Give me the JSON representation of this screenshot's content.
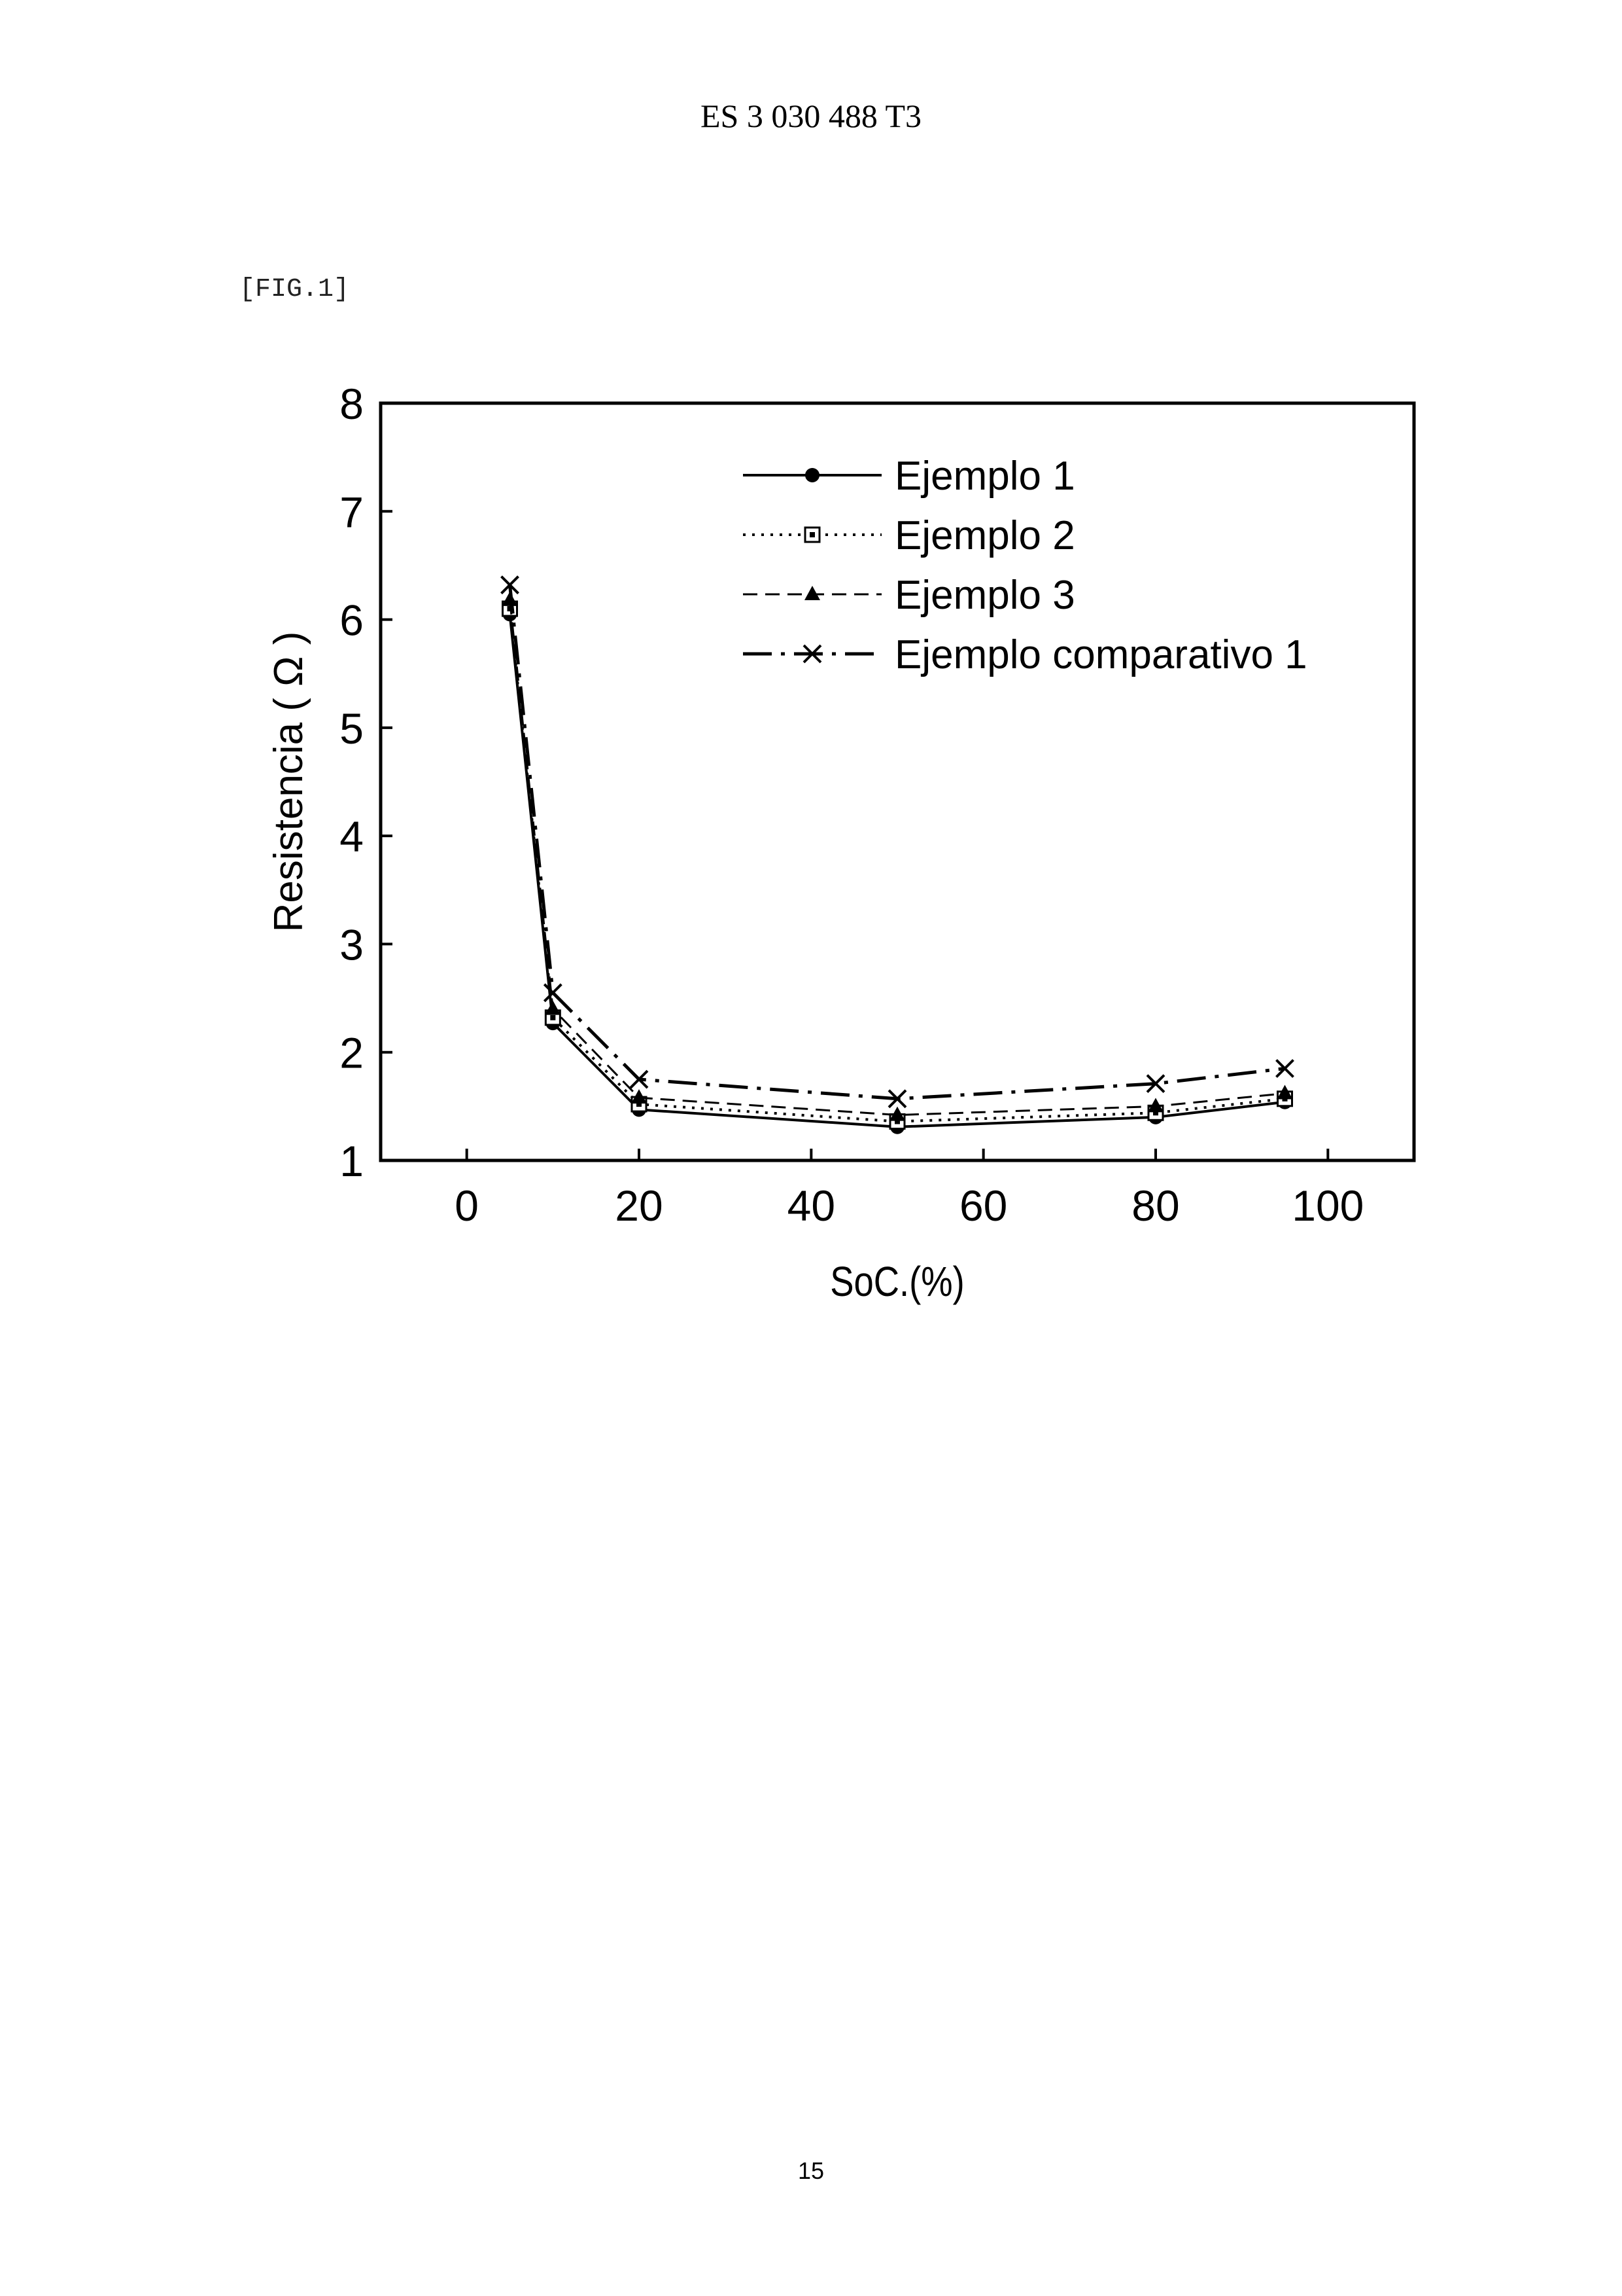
{
  "header": {
    "doc_id": "ES 3 030 488 T3"
  },
  "figure": {
    "label": "[FIG.1]"
  },
  "page": {
    "number": "15"
  },
  "chart_data": {
    "type": "line",
    "title": "",
    "xlabel": "SoC.(%)",
    "ylabel": "Resistencia ( Ω )",
    "xlim": [
      -10,
      110
    ],
    "ylim": [
      1,
      8
    ],
    "xticks": [
      0,
      20,
      40,
      60,
      80,
      100
    ],
    "yticks": [
      1,
      2,
      3,
      4,
      5,
      6,
      7,
      8
    ],
    "grid": false,
    "legend_position": "top-right",
    "x": [
      5,
      10,
      20,
      50,
      80,
      95
    ],
    "series": [
      {
        "name": "Ejemplo 1",
        "line": "solid",
        "marker": "filled-circle",
        "values": [
          6.05,
          2.27,
          1.47,
          1.31,
          1.4,
          1.54
        ]
      },
      {
        "name": "Ejemplo 2",
        "line": "dotted",
        "marker": "open-square",
        "values": [
          6.1,
          2.32,
          1.52,
          1.36,
          1.44,
          1.57
        ]
      },
      {
        "name": "Ejemplo 3",
        "line": "dashed",
        "marker": "filled-triangle",
        "values": [
          6.18,
          2.4,
          1.58,
          1.42,
          1.5,
          1.62
        ]
      },
      {
        "name": "Ejemplo comparativo 1",
        "line": "dash-dot",
        "marker": "x",
        "values": [
          6.32,
          2.55,
          1.75,
          1.57,
          1.71,
          1.85
        ]
      }
    ]
  }
}
